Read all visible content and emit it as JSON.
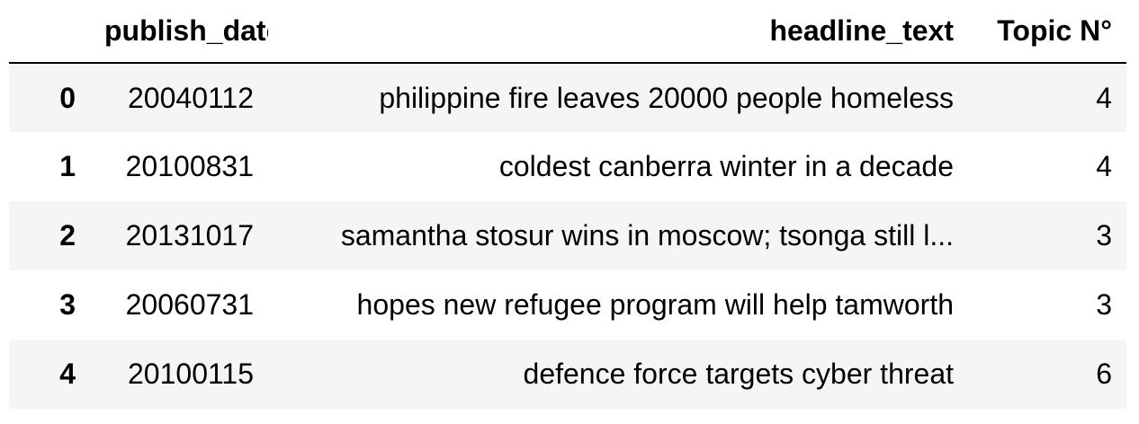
{
  "table": {
    "columns": {
      "index": "",
      "publish_date": "publish_date",
      "headline_text": "headline_text",
      "topic": "Topic N°"
    },
    "rows": [
      {
        "index": "0",
        "publish_date": "20040112",
        "headline_text": "philippine fire leaves 20000 people homeless",
        "topic": "4"
      },
      {
        "index": "1",
        "publish_date": "20100831",
        "headline_text": "coldest canberra winter in a decade",
        "topic": "4"
      },
      {
        "index": "2",
        "publish_date": "20131017",
        "headline_text": "samantha stosur wins in moscow; tsonga still l...",
        "topic": "3"
      },
      {
        "index": "3",
        "publish_date": "20060731",
        "headline_text": "hopes new refugee program will help tamworth",
        "topic": "3"
      },
      {
        "index": "4",
        "publish_date": "20100115",
        "headline_text": "defence force targets cyber threat",
        "topic": "6"
      }
    ],
    "colors": {
      "stripe": "#f5f5f5",
      "header_rule": "#000000"
    }
  }
}
